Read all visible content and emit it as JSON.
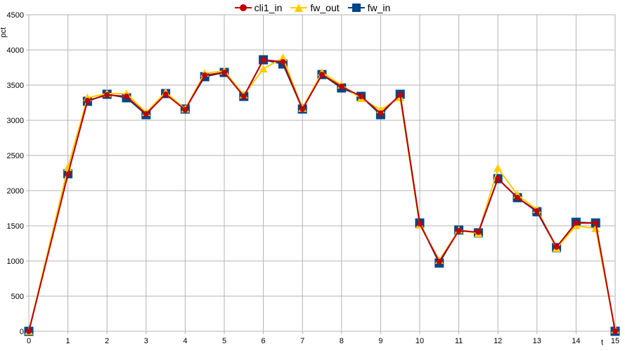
{
  "chart_data": {
    "type": "line",
    "title": "",
    "xlabel": "t",
    "ylabel": "pct",
    "xlim": [
      0,
      15
    ],
    "ylim": [
      0,
      4500
    ],
    "x_ticks": [
      "0",
      "1",
      "2",
      "3",
      "4",
      "5",
      "6",
      "7",
      "8",
      "9",
      "10",
      "11",
      "12",
      "13",
      "14",
      "15"
    ],
    "y_ticks": [
      "0",
      "500",
      "1000",
      "1500",
      "2000",
      "2500",
      "3000",
      "3500",
      "4000",
      "4500"
    ],
    "grid": true,
    "legend_position": "top-center",
    "series": [
      {
        "name": "cli1_in",
        "color": "#c00000",
        "marker": "circle",
        "x": [
          0,
          1,
          1.5,
          2,
          2.5,
          3,
          3.5,
          4,
          4.5,
          5,
          5.5,
          6,
          6.5,
          7,
          7.5,
          8,
          8.5,
          9,
          9.5,
          10,
          10.5,
          11,
          11.5,
          12,
          12.5,
          13,
          13.5,
          14,
          14.5,
          15
        ],
        "y": [
          0,
          2230,
          3280,
          3360,
          3340,
          3090,
          3370,
          3150,
          3640,
          3680,
          3340,
          3860,
          3830,
          3160,
          3650,
          3480,
          3340,
          3100,
          3360,
          1530,
          990,
          1430,
          1410,
          2170,
          1900,
          1710,
          1200,
          1540,
          1540,
          0
        ]
      },
      {
        "name": "fw_out",
        "color": "#ffcc00",
        "marker": "triangle",
        "x": [
          0,
          1,
          1.5,
          2,
          2.5,
          3,
          3.5,
          4,
          4.5,
          5,
          5.5,
          6,
          6.5,
          7,
          7.5,
          8,
          8.5,
          9,
          9.5,
          10,
          10.5,
          11,
          11.5,
          12,
          12.5,
          13,
          13.5,
          14,
          14.5,
          15
        ],
        "y": [
          0,
          2330,
          3320,
          3380,
          3380,
          3110,
          3400,
          3160,
          3670,
          3700,
          3360,
          3730,
          3890,
          3170,
          3680,
          3500,
          3310,
          3150,
          3320,
          1510,
          1010,
          1440,
          1390,
          2320,
          1940,
          1730,
          1180,
          1500,
          1460,
          20
        ]
      },
      {
        "name": "fw_in",
        "color": "#004586",
        "marker": "square",
        "x": [
          0,
          1,
          1.5,
          2,
          2.5,
          3,
          3.5,
          4,
          4.5,
          5,
          5.5,
          6,
          6.5,
          7,
          7.5,
          8,
          8.5,
          9,
          9.5,
          10,
          10.5,
          11,
          11.5,
          12,
          12.5,
          13,
          13.5,
          14,
          14.5,
          15
        ],
        "y": [
          0,
          2240,
          3270,
          3370,
          3320,
          3080,
          3380,
          3160,
          3620,
          3680,
          3340,
          3860,
          3800,
          3160,
          3650,
          3460,
          3340,
          3080,
          3370,
          1540,
          970,
          1440,
          1400,
          2170,
          1900,
          1700,
          1190,
          1550,
          1540,
          0
        ]
      }
    ]
  }
}
